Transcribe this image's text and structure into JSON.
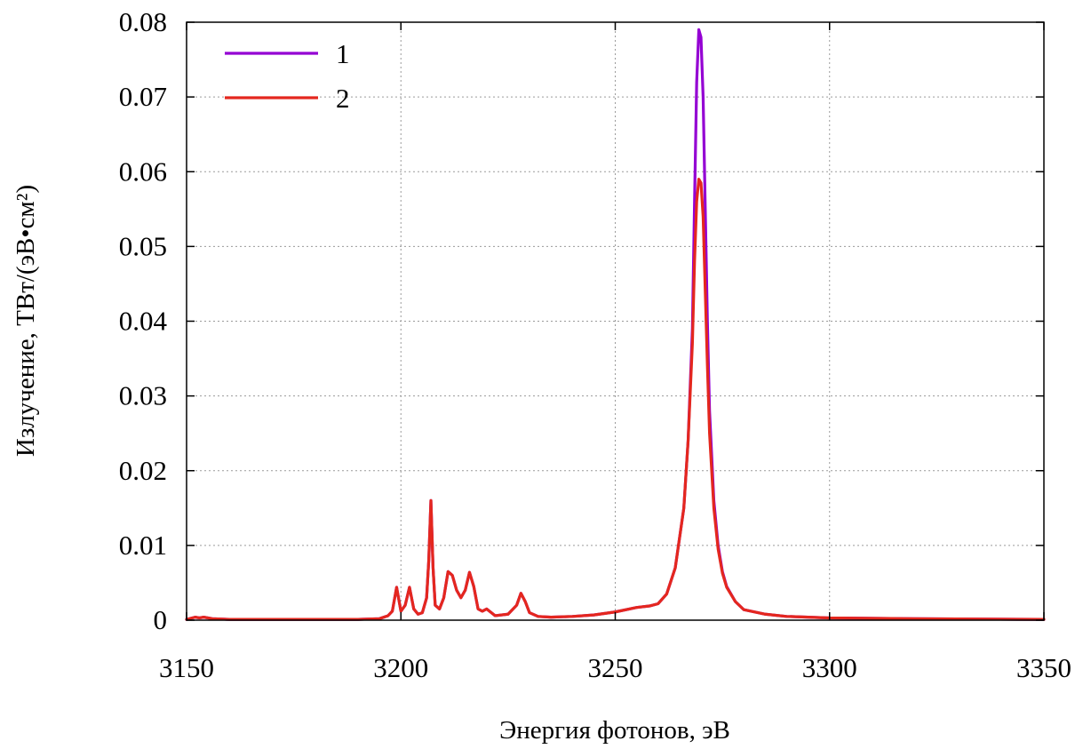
{
  "chart_data": {
    "type": "line",
    "title": "",
    "xlabel": "Энергия фотонов, эВ",
    "ylabel": "Излучение, ТВт/(эВ•см²)",
    "xlim": [
      3150,
      3350
    ],
    "ylim": [
      0,
      0.08
    ],
    "xticks": [
      3150,
      3200,
      3250,
      3300,
      3350
    ],
    "xtick_labels": [
      "3150",
      "3200",
      "3250",
      "3300",
      "3350"
    ],
    "yticks": [
      0,
      0.01,
      0.02,
      0.03,
      0.04,
      0.05,
      0.06,
      0.07,
      0.08
    ],
    "ytick_labels": [
      "0",
      "0.01",
      "0.02",
      "0.03",
      "0.04",
      "0.05",
      "0.06",
      "0.07",
      "0.08"
    ],
    "grid": true,
    "legend_position": "top-left",
    "series": [
      {
        "name": "1",
        "color": "#9400d3",
        "x": [
          3150,
          3152,
          3153,
          3154,
          3156,
          3160,
          3170,
          3180,
          3190,
          3195,
          3197,
          3198,
          3199,
          3200,
          3201,
          3202,
          3203,
          3204,
          3205,
          3206,
          3206.5,
          3207,
          3207.5,
          3208,
          3209,
          3210,
          3211,
          3212,
          3213,
          3214,
          3215,
          3216,
          3217,
          3218,
          3219,
          3220,
          3222,
          3225,
          3227,
          3228,
          3229,
          3230,
          3232,
          3235,
          3240,
          3245,
          3250,
          3255,
          3258,
          3260,
          3262,
          3264,
          3266,
          3267,
          3268,
          3268.5,
          3269,
          3269.5,
          3270,
          3270.5,
          3271,
          3271.5,
          3272,
          3273,
          3274,
          3275,
          3276,
          3278,
          3280,
          3285,
          3290,
          3300,
          3320,
          3350
        ],
        "y": [
          0.0001,
          0.0004,
          0.0003,
          0.0004,
          0.0002,
          0.0001,
          0.0001,
          0.0001,
          0.0001,
          0.0002,
          0.0006,
          0.0012,
          0.0044,
          0.0012,
          0.002,
          0.0044,
          0.0015,
          0.0008,
          0.001,
          0.003,
          0.008,
          0.016,
          0.007,
          0.002,
          0.0015,
          0.003,
          0.0065,
          0.006,
          0.004,
          0.003,
          0.004,
          0.0064,
          0.0045,
          0.0015,
          0.0012,
          0.0015,
          0.0006,
          0.0008,
          0.002,
          0.0036,
          0.0025,
          0.001,
          0.0005,
          0.0004,
          0.0005,
          0.0007,
          0.0011,
          0.0017,
          0.0019,
          0.0022,
          0.0035,
          0.007,
          0.015,
          0.024,
          0.039,
          0.056,
          0.072,
          0.079,
          0.078,
          0.07,
          0.055,
          0.04,
          0.028,
          0.016,
          0.01,
          0.0065,
          0.0045,
          0.0025,
          0.0014,
          0.0008,
          0.0005,
          0.0003,
          0.0002,
          0.0001
        ]
      },
      {
        "name": "2",
        "color": "#e4271e",
        "x": [
          3150,
          3152,
          3153,
          3154,
          3156,
          3160,
          3170,
          3180,
          3190,
          3195,
          3197,
          3198,
          3199,
          3200,
          3201,
          3202,
          3203,
          3204,
          3205,
          3206,
          3206.5,
          3207,
          3207.5,
          3208,
          3209,
          3210,
          3211,
          3212,
          3213,
          3214,
          3215,
          3216,
          3217,
          3218,
          3219,
          3220,
          3222,
          3225,
          3227,
          3228,
          3229,
          3230,
          3232,
          3235,
          3240,
          3245,
          3250,
          3255,
          3258,
          3260,
          3262,
          3264,
          3266,
          3267,
          3268,
          3268.5,
          3269,
          3269.5,
          3270,
          3270.5,
          3271,
          3271.5,
          3272,
          3273,
          3274,
          3275,
          3276,
          3278,
          3280,
          3285,
          3290,
          3300,
          3320,
          3350
        ],
        "y": [
          0.0001,
          0.0004,
          0.0003,
          0.0004,
          0.0002,
          0.0001,
          0.0001,
          0.0001,
          0.0001,
          0.0002,
          0.0006,
          0.0012,
          0.0044,
          0.0012,
          0.002,
          0.0044,
          0.0015,
          0.0008,
          0.001,
          0.003,
          0.008,
          0.016,
          0.007,
          0.002,
          0.0015,
          0.003,
          0.0065,
          0.006,
          0.004,
          0.003,
          0.004,
          0.0064,
          0.0045,
          0.0015,
          0.0012,
          0.0015,
          0.0006,
          0.0008,
          0.002,
          0.0036,
          0.0025,
          0.001,
          0.0005,
          0.0004,
          0.0005,
          0.0007,
          0.0011,
          0.0017,
          0.0019,
          0.0022,
          0.0035,
          0.007,
          0.015,
          0.024,
          0.037,
          0.048,
          0.056,
          0.059,
          0.0585,
          0.054,
          0.044,
          0.034,
          0.025,
          0.015,
          0.0095,
          0.0063,
          0.0044,
          0.0025,
          0.0014,
          0.0008,
          0.0005,
          0.0003,
          0.0002,
          0.0001
        ]
      }
    ]
  }
}
